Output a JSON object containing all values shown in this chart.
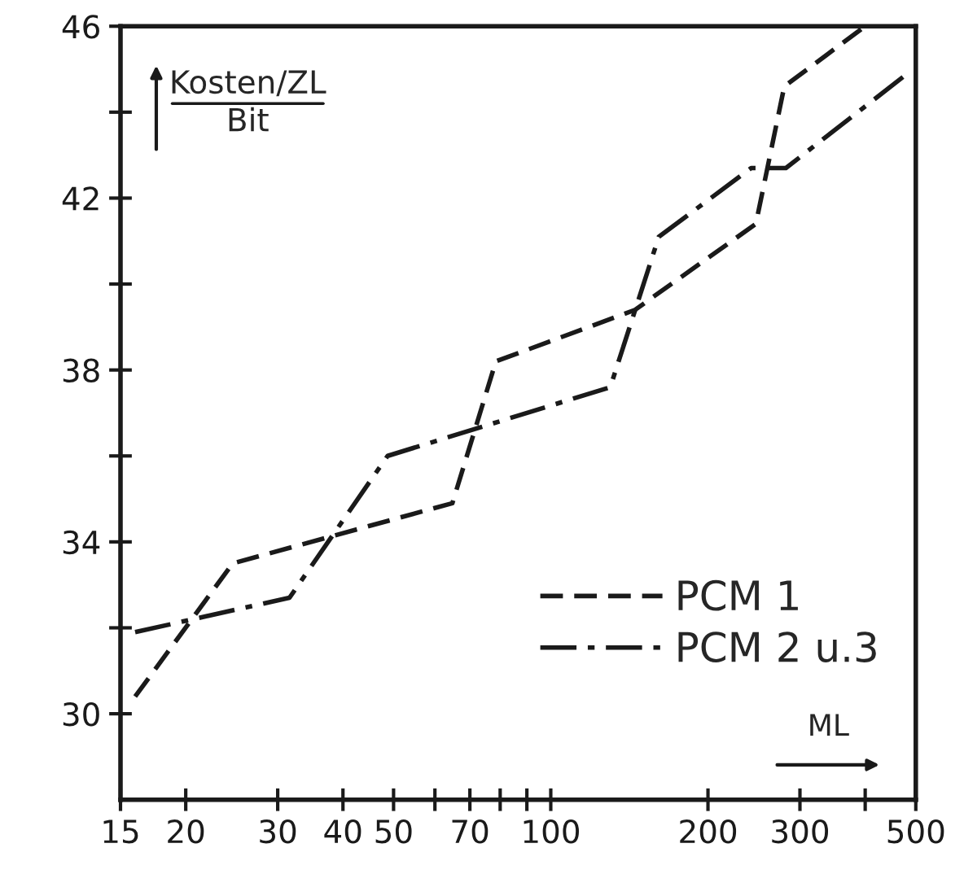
{
  "chart_data": {
    "type": "line",
    "xlabel": "ML",
    "ylabel": "Kosten/ZL\nBit",
    "log": "x",
    "grid": false,
    "legend": "bottom right",
    "marker": "none",
    "xlim": [
      15,
      500
    ],
    "ylim": [
      28,
      46
    ],
    "xticks": [
      15,
      20,
      30,
      40,
      50,
      {
        "value": 60,
        "label": null
      },
      70,
      {
        "value": 80,
        "label": null
      },
      {
        "value": 90,
        "label": null
      },
      100,
      200,
      300,
      {
        "value": 400,
        "label": null
      },
      500
    ],
    "yticks": [
      30,
      {
        "value": 32,
        "label": null
      },
      34,
      {
        "value": 36,
        "label": null
      },
      38,
      {
        "value": 40,
        "label": null
      },
      42,
      {
        "value": 44,
        "label": null
      },
      46
    ],
    "series": [
      {
        "name": "PCM 1",
        "color": "#1a1a1a",
        "line_style": "dashed",
        "x": [
          16.0,
          24.6,
          64.8,
          78.5,
          145,
          247,
          280,
          400
        ],
        "values": [
          30.4,
          33.5,
          34.9,
          38.2,
          39.4,
          41.4,
          44.6,
          46.0
        ]
      },
      {
        "name": "PCM 2 u.3",
        "color": "#1a1a1a",
        "line_style": "dashdot",
        "x": [
          16.0,
          31.6,
          48.7,
          130,
          161,
          242,
          282,
          482
        ],
        "values": [
          31.9,
          32.7,
          36.0,
          37.6,
          41.1,
          42.7,
          42.7,
          44.9
        ]
      }
    ]
  }
}
